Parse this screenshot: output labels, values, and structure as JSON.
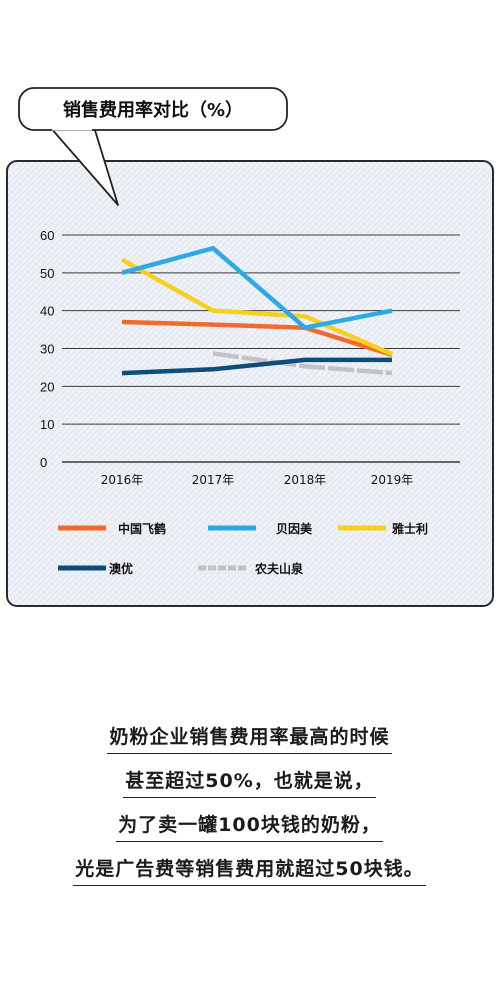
{
  "chart_data": {
    "type": "line",
    "title": "销售费用率对比（%）",
    "categories": [
      "2016年",
      "2017年",
      "2018年",
      "2019年"
    ],
    "y_ticks": [
      "0",
      "10",
      "20",
      "30",
      "40",
      "50",
      "60"
    ],
    "ylim": [
      0,
      60
    ],
    "grid": true,
    "legend_position": "bottom",
    "series": [
      {
        "name": "中国飞鹤",
        "color": "#f26a2e",
        "dash": false,
        "points": [
          [
            2016,
            37
          ],
          [
            2017,
            36.3
          ],
          [
            2018,
            35.5
          ],
          [
            2019,
            28.3
          ]
        ]
      },
      {
        "name": "贝因美",
        "color": "#2ea9e8",
        "dash": false,
        "points": [
          [
            2016,
            50
          ],
          [
            2017,
            56.5
          ],
          [
            2018,
            35.5
          ],
          [
            2019,
            40
          ]
        ]
      },
      {
        "name": "雅士利",
        "color": "#f7cf1e",
        "dash": false,
        "points": [
          [
            2016,
            53.5
          ],
          [
            2017,
            40
          ],
          [
            2018,
            38.5
          ],
          [
            2019,
            28.5
          ]
        ]
      },
      {
        "name": "澳优",
        "color": "#0d4d7c",
        "dash": false,
        "points": [
          [
            2016,
            23.5
          ],
          [
            2017,
            24.5
          ],
          [
            2018,
            27
          ],
          [
            2019,
            27
          ]
        ]
      },
      {
        "name": "农夫山泉",
        "color": "#c3c3c5",
        "dash": true,
        "points": [
          [
            2017,
            28.7
          ],
          [
            2018,
            25.3
          ],
          [
            2019,
            23.5
          ]
        ]
      }
    ]
  },
  "caption": {
    "lines": [
      "奶粉企业销售费用率最高的时候",
      "甚至超过50%，也就是说，",
      "为了卖一罐100块钱的奶粉，",
      "光是广告费等销售费用就超过50块钱。"
    ]
  }
}
